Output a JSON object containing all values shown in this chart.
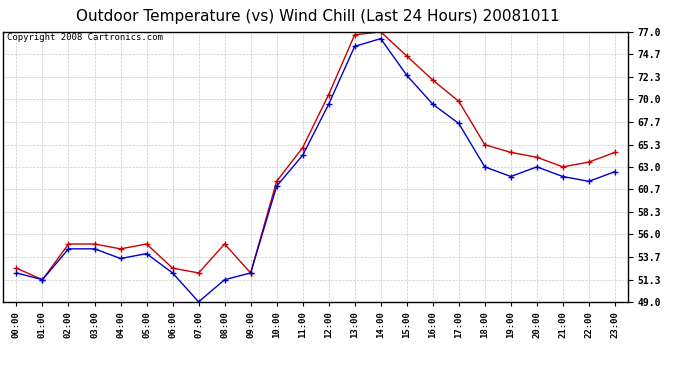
{
  "title": "Outdoor Temperature (vs) Wind Chill (Last 24 Hours) 20081011",
  "copyright": "Copyright 2008 Cartronics.com",
  "hours": [
    "00:00",
    "01:00",
    "02:00",
    "03:00",
    "04:00",
    "05:00",
    "06:00",
    "07:00",
    "08:00",
    "09:00",
    "10:00",
    "11:00",
    "12:00",
    "13:00",
    "14:00",
    "15:00",
    "16:00",
    "17:00",
    "18:00",
    "19:00",
    "20:00",
    "21:00",
    "22:00",
    "23:00"
  ],
  "temp": [
    52.5,
    51.3,
    55.0,
    55.0,
    54.5,
    55.0,
    52.5,
    52.0,
    55.0,
    52.0,
    61.5,
    65.0,
    70.5,
    76.7,
    77.0,
    74.5,
    72.0,
    69.8,
    65.3,
    64.5,
    64.0,
    63.0,
    63.5,
    64.5
  ],
  "windchill": [
    52.0,
    51.3,
    54.5,
    54.5,
    53.5,
    54.0,
    52.0,
    49.0,
    51.3,
    52.0,
    61.0,
    64.2,
    69.5,
    75.5,
    76.3,
    72.5,
    69.5,
    67.5,
    63.0,
    62.0,
    63.0,
    62.0,
    61.5,
    62.5
  ],
  "temp_color": "#cc0000",
  "windchill_color": "#0000cc",
  "bg_color": "#ffffff",
  "plot_bg_color": "#ffffff",
  "grid_color": "#bbbbbb",
  "ylim": [
    49.0,
    77.0
  ],
  "yticks": [
    49.0,
    51.3,
    53.7,
    56.0,
    58.3,
    60.7,
    63.0,
    65.3,
    67.7,
    70.0,
    72.3,
    74.7,
    77.0
  ],
  "title_fontsize": 11,
  "copyright_fontsize": 6.5,
  "tick_fontsize": 7,
  "xtick_fontsize": 6.5
}
